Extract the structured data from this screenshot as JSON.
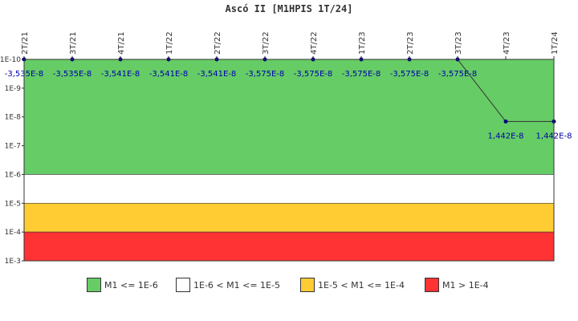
{
  "chart_data": {
    "type": "line",
    "title": "Ascó II [M1HPIS 1T/24]",
    "xlabel": "",
    "ylabel": "",
    "y_scale": "log",
    "y_axis_reversed": true,
    "ylim": [
      1e-10,
      0.001
    ],
    "y_tick_labels": [
      "1E-10",
      "1E-9",
      "1E-8",
      "1E-7",
      "1E-6",
      "1E-5",
      "1E-4",
      "1E-3"
    ],
    "categories": [
      "2T/21",
      "3T/21",
      "4T/21",
      "1T/22",
      "2T/22",
      "3T/22",
      "4T/22",
      "1T/23",
      "2T/23",
      "3T/23",
      "4T/23",
      "1T/24"
    ],
    "series": [
      {
        "values": [
          -3.535e-08,
          -3.535e-08,
          -3.541e-08,
          -3.541e-08,
          -3.541e-08,
          -3.575e-08,
          -3.575e-08,
          -3.575e-08,
          -3.575e-08,
          -3.575e-08,
          1.442e-08,
          1.442e-08
        ],
        "data_labels": [
          "-3,535E-8",
          "-3,535E-8",
          "-3,541E-8",
          "-3,541E-8",
          "-3,541E-8",
          "-3,575E-8",
          "-3,575E-8",
          "-3,575E-8",
          "-3,575E-8",
          "-3,575E-8",
          "1,442E-8",
          "1,442E-8"
        ],
        "color": "#000080"
      }
    ],
    "bands": [
      {
        "from": 1e-10,
        "to": 1e-06,
        "color": "#66cc66"
      },
      {
        "from": 1e-06,
        "to": 1e-05,
        "color": "#ffffff"
      },
      {
        "from": 1e-05,
        "to": 0.0001,
        "color": "#ffcc33"
      },
      {
        "from": 0.0001,
        "to": 0.001,
        "color": "#ff3333"
      }
    ],
    "legend": {
      "placement": "bottom",
      "items": [
        {
          "label": "M1 <= 1E-6",
          "color": "#66cc66"
        },
        {
          "label": "1E-6 < M1 <= 1E-5",
          "color": "#ffffff"
        },
        {
          "label": "1E-5 < M1 <= 1E-4",
          "color": "#ffcc33"
        },
        {
          "label": "M1 > 1E-4",
          "color": "#ff3333"
        }
      ]
    }
  }
}
